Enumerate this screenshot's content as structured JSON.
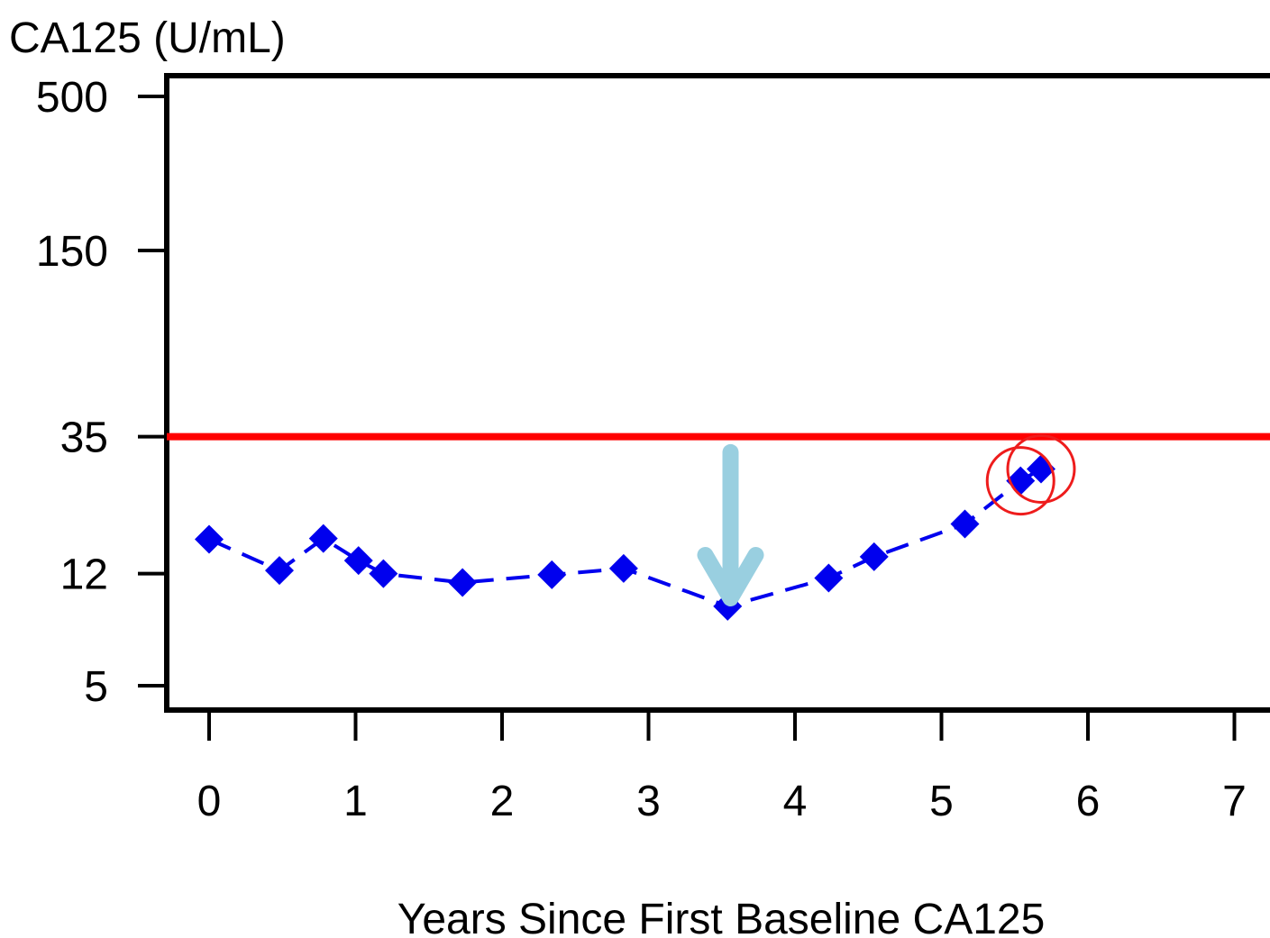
{
  "chart_data": {
    "type": "scatter",
    "title": "",
    "xlabel": "Years Since First Baseline CA125",
    "ylabel": "CA125 (U/mL)",
    "y_scale": "log",
    "xlim": [
      -0.3,
      7.3
    ],
    "ylim": [
      4.2,
      500
    ],
    "x_ticks": [
      0,
      1,
      2,
      3,
      4,
      5,
      6,
      7
    ],
    "y_ticks": [
      5,
      12,
      35,
      150,
      500
    ],
    "grid": false,
    "legend": "none",
    "series": [
      {
        "style": "dashed-line-diamond-markers",
        "color": "#0000ee",
        "points": [
          {
            "x": 0.0,
            "y": 15.7
          },
          {
            "x": 0.48,
            "y": 12.3
          },
          {
            "x": 0.78,
            "y": 15.8
          },
          {
            "x": 1.02,
            "y": 13.3
          },
          {
            "x": 1.19,
            "y": 12.0
          },
          {
            "x": 1.73,
            "y": 11.2
          },
          {
            "x": 2.34,
            "y": 11.9
          },
          {
            "x": 2.83,
            "y": 12.5
          },
          {
            "x": 3.54,
            "y": 9.3
          },
          {
            "x": 4.23,
            "y": 11.6
          },
          {
            "x": 4.54,
            "y": 13.7
          },
          {
            "x": 5.16,
            "y": 17.7
          },
          {
            "x": 5.54,
            "y": 24.8
          },
          {
            "x": 5.68,
            "y": 27.2
          }
        ]
      }
    ],
    "reference_lines": [
      {
        "orientation": "horizontal",
        "y": 35,
        "color": "#ff0000"
      }
    ],
    "annotations": [
      {
        "type": "arrow",
        "x": 3.56,
        "y_from": 31,
        "y_to": 9.9,
        "color": "#99cfe0"
      },
      {
        "type": "circle",
        "x": 5.54,
        "y": 24.8,
        "color": "#ee1c1c"
      },
      {
        "type": "circle",
        "x": 5.68,
        "y": 27.2,
        "color": "#ee1c1c"
      }
    ]
  }
}
